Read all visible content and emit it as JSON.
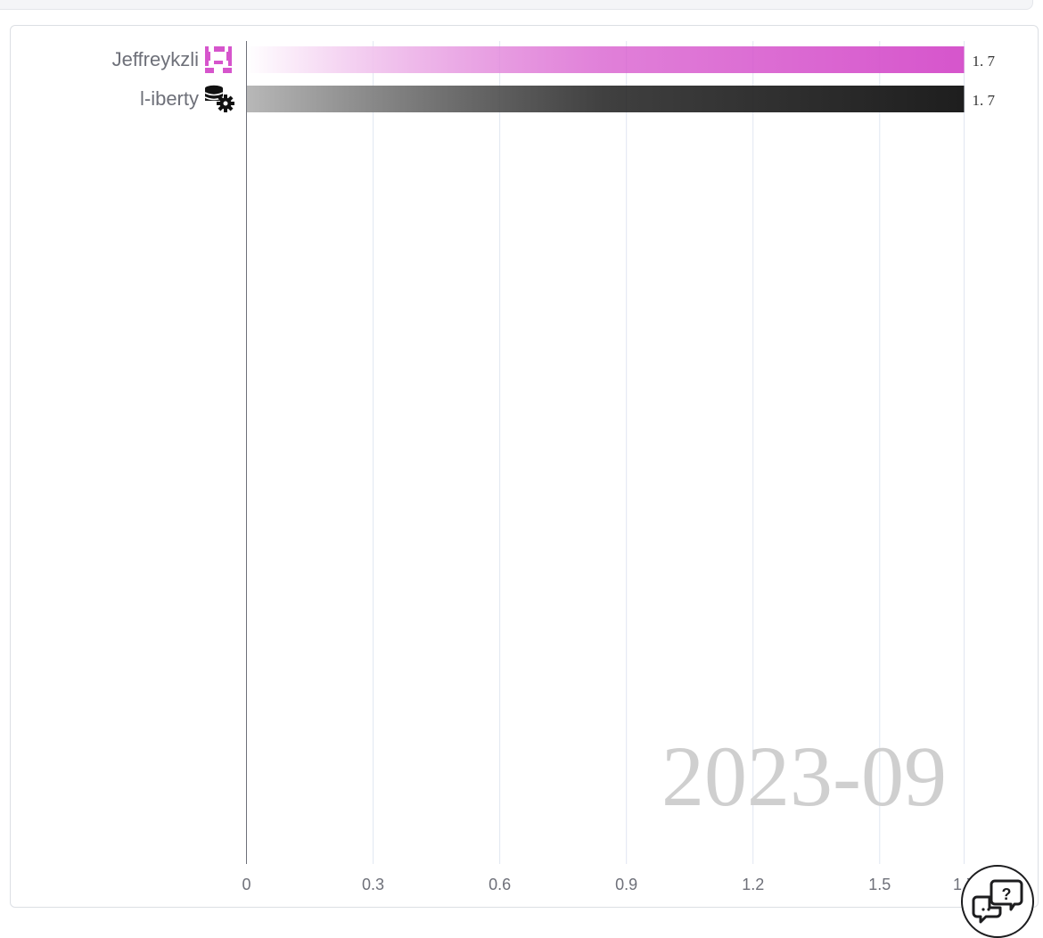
{
  "chart_data": {
    "type": "bar",
    "orientation": "horizontal",
    "period_label": "2023-09",
    "categories": [
      "Jeffreykzli",
      "l-iberty"
    ],
    "values": [
      1.7,
      1.7
    ],
    "value_labels": [
      "1. 7",
      "1. 7"
    ],
    "bar_colors": [
      "#d655cc",
      "#1e1e1e"
    ],
    "category_icons": [
      "pixel-avatar-icon",
      "database-gear-icon"
    ],
    "x_ticks": [
      0,
      0.3,
      0.6,
      0.9,
      1.2,
      1.5,
      1.7
    ],
    "x_tick_labels": [
      "0",
      "0.3",
      "0.6",
      "0.9",
      "1.2",
      "1.5",
      "1.7"
    ],
    "xlim": [
      0,
      1.7
    ],
    "grid": "vertical",
    "xlabel": "",
    "ylabel": "",
    "title": ""
  },
  "help_button": {
    "icon": "help-chat-icon",
    "glyph": "?"
  }
}
